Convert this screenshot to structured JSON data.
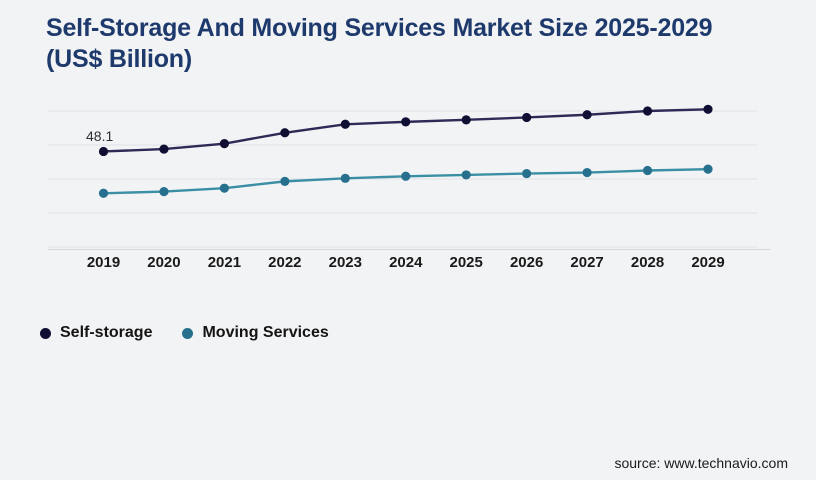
{
  "title": "Self-Storage And Moving Services Market Size 2025-2029 (US$ Billion)",
  "source": "source: www.technavio.com",
  "colors": {
    "background": "#f2f3f5",
    "title_text": "#1e3a6c",
    "gridline": "#e3e5e9",
    "axis_line": "#d7d9dd",
    "tick_label": "#1a1a1a",
    "legend_text": "#141414",
    "data_label_text": "#2e2e2e"
  },
  "chart_data": {
    "type": "line",
    "title": "Self-Storage And Moving Services Market Size 2025-2029 (US$ Billion)",
    "xlabel": "",
    "ylabel": "",
    "categories": [
      "2019",
      "2020",
      "2021",
      "2022",
      "2023",
      "2024",
      "2025",
      "2026",
      "2027",
      "2028",
      "2029"
    ],
    "series": [
      {
        "name": "Self-storage",
        "dot_color": "#0f0e33",
        "line_color": "#2d2a56",
        "values": [
          48.1,
          48.8,
          50.4,
          53.6,
          56.1,
          56.8,
          57.4,
          58.1,
          58.9,
          60.0,
          60.5
        ]
      },
      {
        "name": "Moving Services",
        "dot_color": "#26708d",
        "line_color": "#3b8fa4",
        "values": [
          35.8,
          36.3,
          37.3,
          39.3,
          40.2,
          40.8,
          41.2,
          41.6,
          41.9,
          42.5,
          42.9
        ]
      }
    ],
    "visible_data_label": {
      "series": "Self-storage",
      "category": "2019",
      "text": "48.1"
    },
    "ylim": [
      20,
      65
    ],
    "gridline_values": [
      60,
      50,
      40,
      30,
      20
    ],
    "grid": true,
    "y_axis_labels_shown": false,
    "legend_position": "bottom-left"
  }
}
